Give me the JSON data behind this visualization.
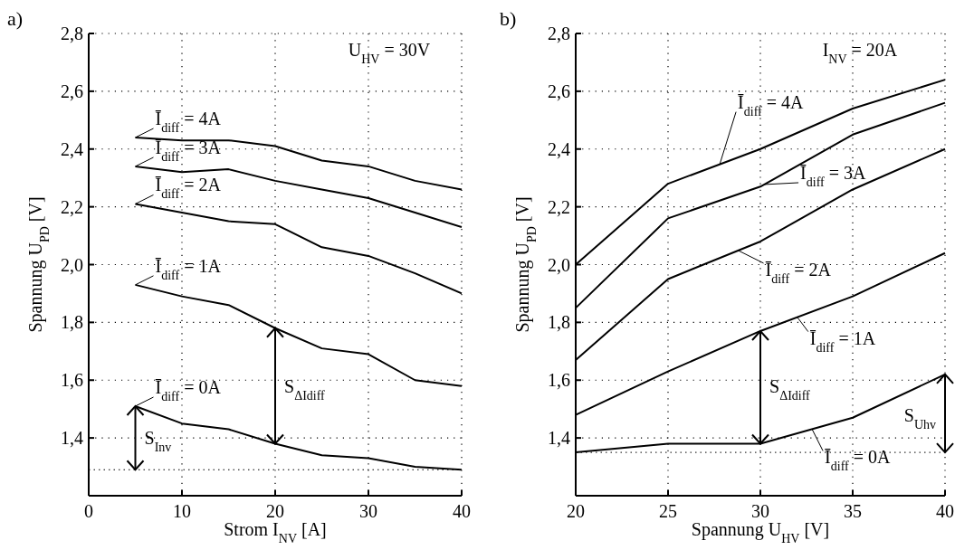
{
  "chart_data": [
    {
      "type": "line",
      "title": "a)",
      "xlabel": "Strom I$_{NV}$ [A]",
      "ylabel": "Spannung U$_{PD}$ [V]",
      "x": [
        5,
        10,
        15,
        20,
        25,
        30,
        35,
        40
      ],
      "xlim": [
        0,
        40
      ],
      "xticks": [
        0,
        10,
        20,
        30,
        40
      ],
      "ylim": [
        1.2,
        2.8
      ],
      "yticks": [
        {
          "value": 1.4,
          "label": "1,4"
        },
        {
          "value": 1.6,
          "label": "1,6"
        },
        {
          "value": 1.8,
          "label": "1,8"
        },
        {
          "value": 2.0,
          "label": "2,0"
        },
        {
          "value": 2.2,
          "label": "2,2"
        },
        {
          "value": 2.4,
          "label": "2,4"
        },
        {
          "value": 2.6,
          "label": "2,6"
        },
        {
          "value": 2.8,
          "label": "2,8"
        }
      ],
      "grid": true,
      "legend": "left",
      "marker": "none",
      "line_style": "solid",
      "series": [
        {
          "name": "Ī$_{diff}$ = 4A",
          "color": "#000000",
          "values": [
            2.44,
            2.43,
            2.43,
            2.41,
            2.36,
            2.34,
            2.29,
            2.26
          ]
        },
        {
          "name": "Ī$_{diff}$ = 3A",
          "color": "#000000",
          "values": [
            2.34,
            2.32,
            2.33,
            2.29,
            2.26,
            2.23,
            2.18,
            2.13
          ]
        },
        {
          "name": "Ī$_{diff}$ = 2A",
          "color": "#000000",
          "values": [
            2.21,
            2.18,
            2.15,
            2.14,
            2.06,
            2.03,
            1.97,
            1.9
          ]
        },
        {
          "name": "Ī$_{diff}$ = 1A",
          "color": "#000000",
          "values": [
            1.93,
            1.89,
            1.86,
            1.78,
            1.71,
            1.69,
            1.6,
            1.58
          ]
        },
        {
          "name": "Ī$_{diff}$ = 0A",
          "color": "#000000",
          "values": [
            1.51,
            1.45,
            1.43,
            1.38,
            1.34,
            1.33,
            1.3,
            1.29
          ]
        }
      ],
      "ref_lines": [
        {
          "axis": "y",
          "value": 1.29,
          "color": "#000000",
          "line_style": "dotted"
        }
      ],
      "annotations": [
        "U$_{HV}$ = 30V",
        "S$_{Inv}$",
        "S$_{ΔIdiff}$"
      ]
    },
    {
      "type": "line",
      "title": "b)",
      "xlabel": "Spannung U$_{HV}$ [V]",
      "ylabel": "Spannung U$_{PD}$ [V]",
      "x": [
        20,
        25,
        30,
        35,
        40
      ],
      "xlim": [
        20,
        40
      ],
      "xticks": [
        20,
        25,
        30,
        35,
        40
      ],
      "ylim": [
        1.2,
        2.8
      ],
      "yticks": [
        {
          "value": 1.4,
          "label": "1,4"
        },
        {
          "value": 1.6,
          "label": "1,6"
        },
        {
          "value": 1.8,
          "label": "1,8"
        },
        {
          "value": 2.0,
          "label": "2,0"
        },
        {
          "value": 2.2,
          "label": "2,2"
        },
        {
          "value": 2.4,
          "label": "2,4"
        },
        {
          "value": 2.6,
          "label": "2,6"
        },
        {
          "value": 2.8,
          "label": "2,8"
        }
      ],
      "grid": true,
      "legend": "right",
      "marker": "none",
      "line_style": "solid",
      "series": [
        {
          "name": "Ī$_{diff}$ = 4A",
          "color": "#000000",
          "values": [
            2.0,
            2.28,
            2.4,
            2.54,
            2.64
          ]
        },
        {
          "name": "Ī$_{diff}$ = 3A",
          "color": "#000000",
          "values": [
            1.85,
            2.16,
            2.27,
            2.45,
            2.56
          ]
        },
        {
          "name": "Ī$_{diff}$ = 2A",
          "color": "#000000",
          "values": [
            1.67,
            1.95,
            2.08,
            2.26,
            2.4
          ]
        },
        {
          "name": "Ī$_{diff}$ = 1A",
          "color": "#000000",
          "values": [
            1.48,
            1.63,
            1.77,
            1.89,
            2.04
          ]
        },
        {
          "name": "Ī$_{diff}$ = 0A",
          "color": "#000000",
          "values": [
            1.35,
            1.38,
            1.38,
            1.47,
            1.62
          ]
        }
      ],
      "ref_lines": [
        {
          "axis": "y",
          "value": 1.35,
          "color": "#000000",
          "line_style": "dotted"
        }
      ],
      "annotations": [
        "I$_{NV}$ = 20A",
        "S$_{ΔIdiff}$",
        "S$_{Uhv}$"
      ]
    }
  ]
}
